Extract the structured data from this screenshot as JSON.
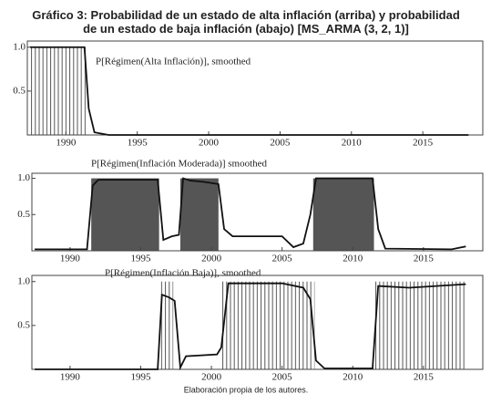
{
  "title": "Gráfico 3: Probabilidad de un estado de alta inflación (arriba) y probabilidad de un estado de baja inflación (abajo) [MS_ARMA (3, 2, 1)]",
  "note": "Elaboración propia de los autores.",
  "chart_data": [
    {
      "type": "line",
      "xlim": [
        1987.3,
        2019.2
      ],
      "ylim": [
        0,
        1.07
      ],
      "xticks": [
        1990,
        1995,
        2000,
        2005,
        2010,
        2015
      ],
      "yticks": [
        0.5,
        {
          "value": 1,
          "label": "1.0"
        }
      ],
      "shading": {
        "style": "stripes",
        "color": "#555555",
        "spans": [
          [
            1987.5,
            1991.5
          ]
        ]
      },
      "series": [
        {
          "name": "P[Régimen(Alta Inflación)], smoothed",
          "color": "#111111",
          "x": [
            1987.5,
            1991.3,
            1991.6,
            1992,
            1993,
            2000,
            2010,
            2018.2
          ],
          "values": [
            1,
            1,
            0.3,
            0.03,
            0,
            0,
            0,
            0
          ]
        }
      ]
    },
    {
      "type": "line",
      "xlim": [
        1987.3,
        2019.2
      ],
      "ylim": [
        0,
        1.07
      ],
      "xticks": [
        1990,
        1995,
        2000,
        2005,
        2010,
        2015
      ],
      "yticks": [
        0.5,
        {
          "value": 1,
          "label": "1.0"
        }
      ],
      "shading": {
        "style": "solid",
        "color": "#555555",
        "spans": [
          [
            1991.5,
            1996.3
          ],
          [
            1997.8,
            2000.5
          ],
          [
            2007.2,
            2011.5
          ]
        ]
      },
      "series": [
        {
          "name": "P[Régimen(Inflación Moderada)] smoothed",
          "color": "#111111",
          "x": [
            1987.5,
            1991.2,
            1991.6,
            1992,
            1996.2,
            1996.6,
            1997.2,
            1997.7,
            1998,
            1998.5,
            1999.5,
            2000.5,
            2000.9,
            2001.5,
            2005,
            2005.8,
            2006.5,
            2007,
            2007.4,
            2011.4,
            2011.8,
            2012.3,
            2017,
            2018
          ],
          "values": [
            0.02,
            0.02,
            0.9,
            0.98,
            0.98,
            0.15,
            0.2,
            0.22,
            1,
            0.97,
            0.95,
            0.92,
            0.3,
            0.2,
            0.2,
            0.05,
            0.1,
            0.5,
            1,
            1,
            0.3,
            0.03,
            0.02,
            0.06
          ]
        }
      ]
    },
    {
      "type": "line",
      "xlim": [
        1987.3,
        2019.2
      ],
      "ylim": [
        0,
        1.07
      ],
      "xticks": [
        1990,
        1995,
        2000,
        2005,
        2010,
        2015
      ],
      "yticks": [
        0.5,
        {
          "value": 1,
          "label": "1.0"
        }
      ],
      "shading": {
        "style": "stripes",
        "color": "#555555",
        "spans": [
          [
            1996.3,
            1997.3
          ],
          [
            2000.7,
            2007.3
          ],
          [
            2011.5,
            2018
          ]
        ]
      },
      "series": [
        {
          "name": "P[Régimen(Inflación Baja)], smoothed",
          "color": "#111111",
          "x": [
            1987.5,
            1996.2,
            1996.5,
            1997,
            1997.4,
            1997.8,
            1998.2,
            2000.4,
            2000.7,
            2001.2,
            2005,
            2006.5,
            2007,
            2007.4,
            2008,
            2011.4,
            2011.8,
            2014,
            2018
          ],
          "values": [
            0,
            0,
            0.85,
            0.82,
            0.78,
            0.02,
            0.15,
            0.17,
            0.25,
            0.98,
            0.98,
            0.93,
            0.8,
            0.1,
            0.01,
            0.01,
            0.95,
            0.93,
            0.97
          ]
        }
      ]
    }
  ]
}
